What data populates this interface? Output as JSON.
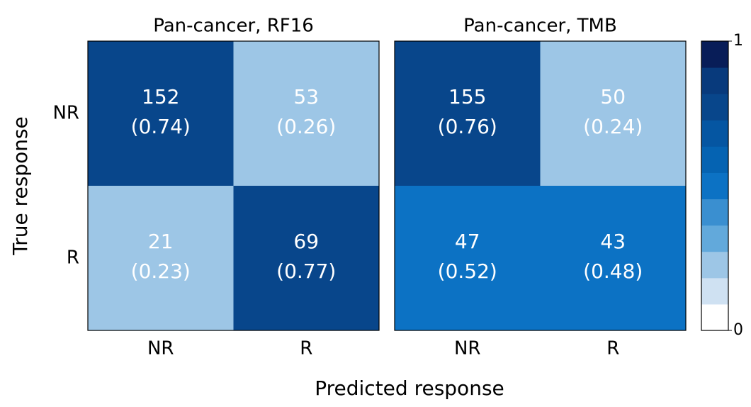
{
  "chart_data": [
    {
      "type": "heatmap",
      "title": "Pan-cancer, RF16",
      "x_categories": [
        "NR",
        "R"
      ],
      "y_categories": [
        "NR",
        "R"
      ],
      "values": [
        [
          152,
          53
        ],
        [
          21,
          69
        ]
      ],
      "fractions": [
        [
          0.74,
          0.26
        ],
        [
          0.23,
          0.77
        ]
      ],
      "fraction_labels": [
        [
          "(0.74)",
          "(0.26)"
        ],
        [
          "(0.23)",
          "(0.77)"
        ]
      ]
    },
    {
      "type": "heatmap",
      "title": "Pan-cancer, TMB",
      "x_categories": [
        "NR",
        "R"
      ],
      "y_categories": [
        "NR",
        "R"
      ],
      "values": [
        [
          155,
          50
        ],
        [
          47,
          43
        ]
      ],
      "fractions": [
        [
          0.76,
          0.24
        ],
        [
          0.52,
          0.48
        ]
      ],
      "fraction_labels": [
        [
          "(0.76)",
          "(0.24)"
        ],
        [
          "(0.52)",
          "(0.48)"
        ]
      ]
    }
  ],
  "shared": {
    "xlabel": "Predicted response",
    "ylabel": "True response",
    "colorbar": {
      "lim": [
        0,
        1
      ],
      "ticks": [
        0,
        1
      ],
      "colors": [
        "#ffffff",
        "#cfe1f2",
        "#9dc6e6",
        "#62a9db",
        "#3a8fd0",
        "#0c72c4",
        "#0563b2",
        "#0556a2",
        "#08468b",
        "#083a7c",
        "#081d58"
      ]
    }
  }
}
